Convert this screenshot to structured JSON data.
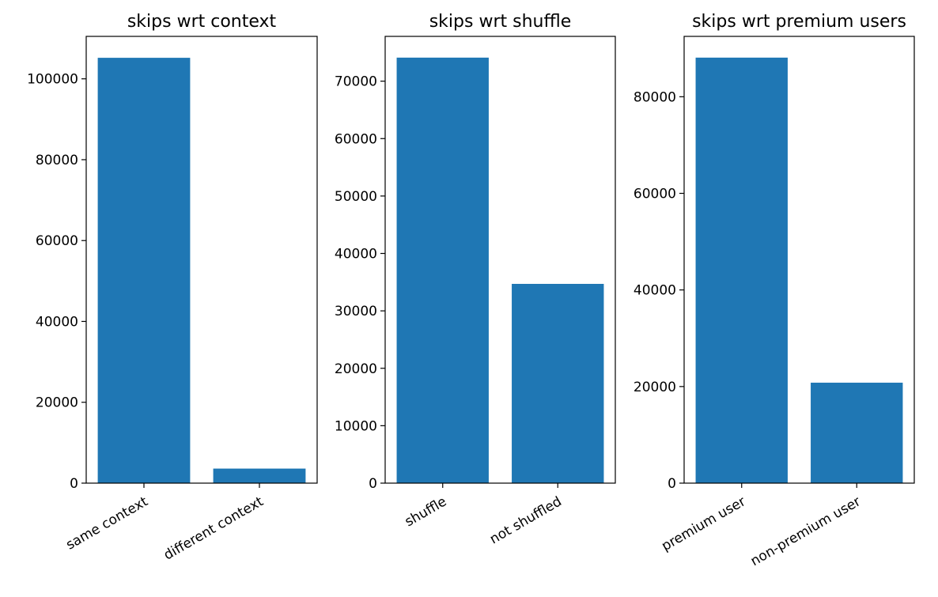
{
  "chart_data": [
    {
      "type": "bar",
      "title": "skips wrt context",
      "categories": [
        "same context",
        "different context"
      ],
      "values": [
        105200,
        3600
      ],
      "ylim": [
        0,
        110500
      ],
      "yticks": [
        0,
        20000,
        40000,
        60000,
        80000,
        100000
      ],
      "ytick_labels": [
        "0",
        "20000",
        "40000",
        "60000",
        "80000",
        "100000"
      ],
      "xlabel": "",
      "ylabel": "",
      "color": "#1f77b4"
    },
    {
      "type": "bar",
      "title": "skips wrt shuffle",
      "categories": [
        "shuffle",
        "not shuffled"
      ],
      "values": [
        74100,
        34700
      ],
      "ylim": [
        0,
        77800
      ],
      "yticks": [
        0,
        10000,
        20000,
        30000,
        40000,
        50000,
        60000,
        70000
      ],
      "ytick_labels": [
        "0",
        "10000",
        "20000",
        "30000",
        "40000",
        "50000",
        "60000",
        "70000"
      ],
      "xlabel": "",
      "ylabel": "",
      "color": "#1f77b4"
    },
    {
      "type": "bar",
      "title": "skips wrt premium users",
      "categories": [
        "premium user",
        "non-premium user"
      ],
      "values": [
        88100,
        20800
      ],
      "ylim": [
        0,
        92500
      ],
      "yticks": [
        0,
        20000,
        40000,
        60000,
        80000
      ],
      "ytick_labels": [
        "0",
        "20000",
        "40000",
        "60000",
        "80000"
      ],
      "xlabel": "",
      "ylabel": "",
      "color": "#1f77b4"
    }
  ]
}
